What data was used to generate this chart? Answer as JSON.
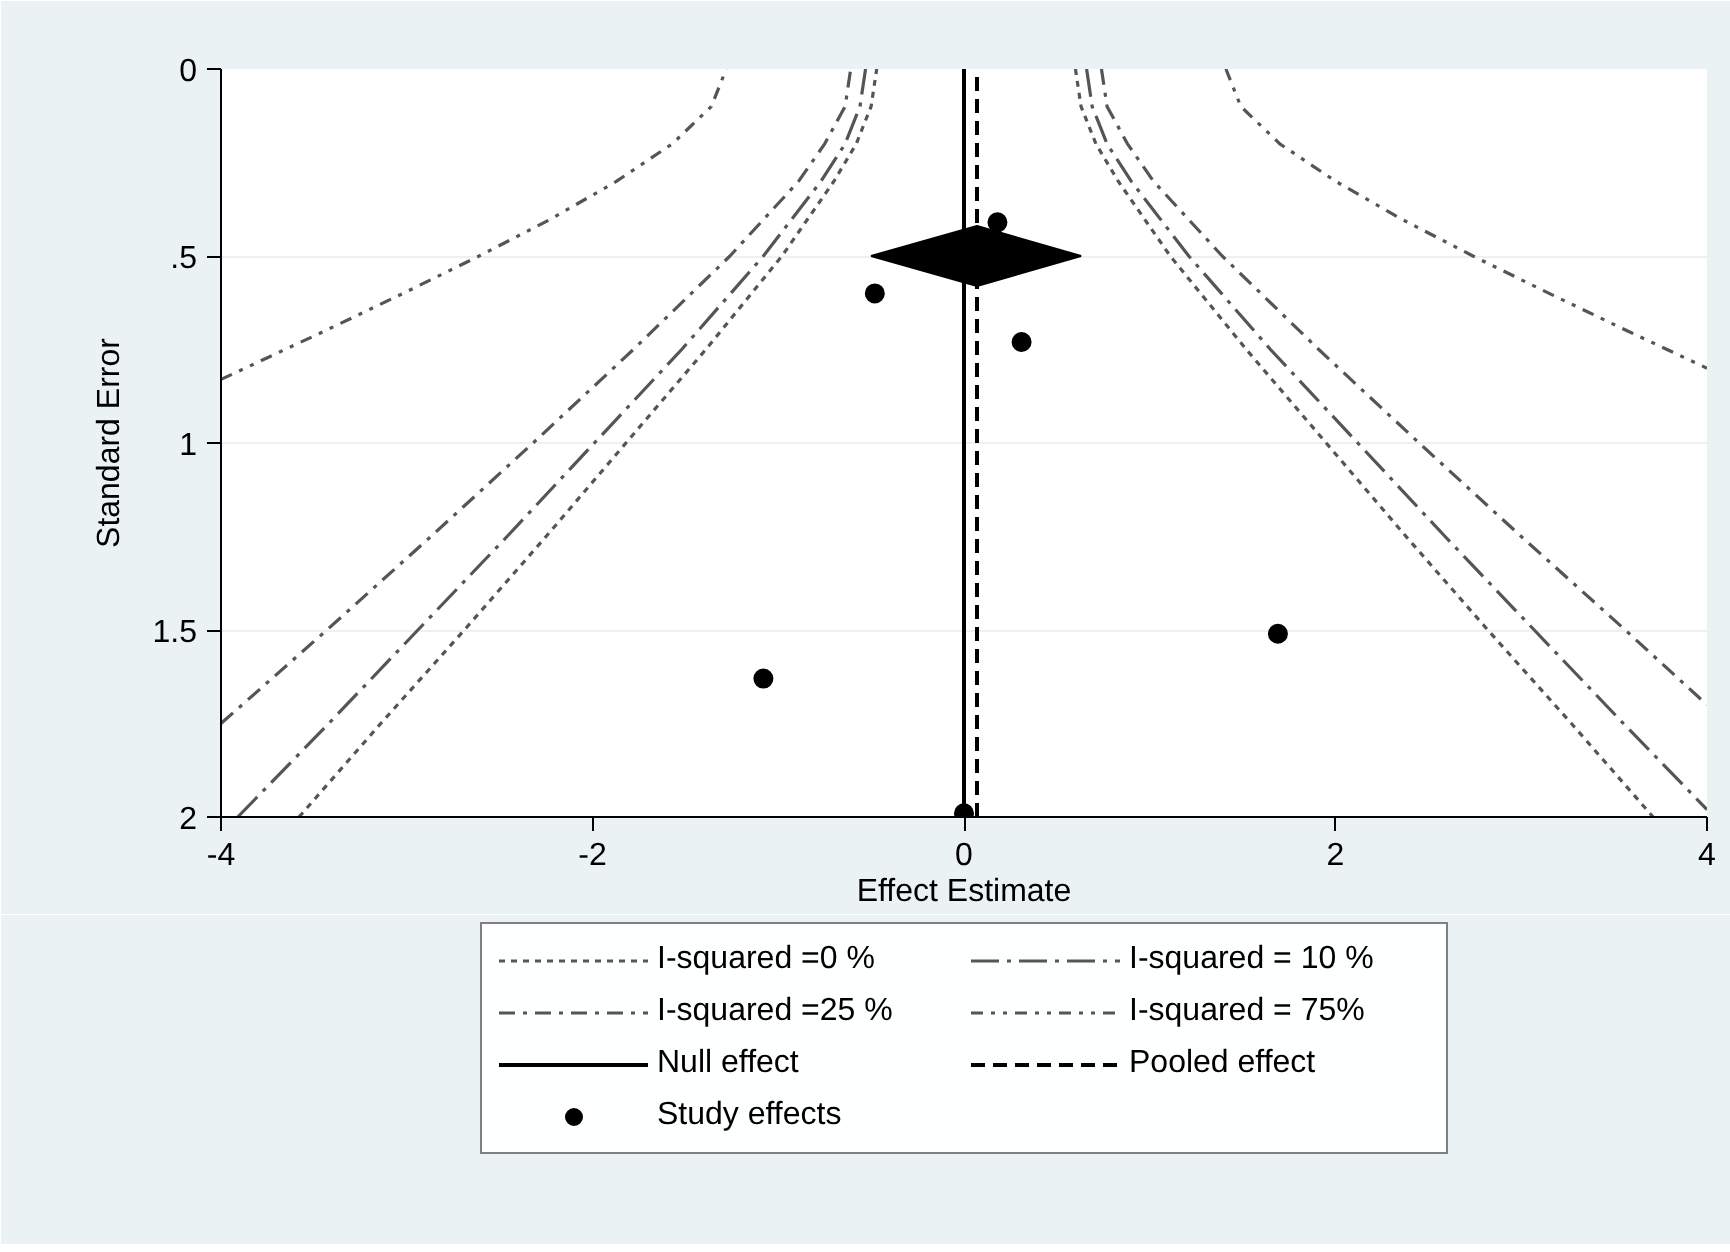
{
  "chart_data": {
    "type": "line",
    "xlabel": "Effect Estimate",
    "ylabel": "Standard Error",
    "xlim": [
      -4,
      4
    ],
    "xticks": [
      -4,
      -2,
      0,
      2,
      4
    ],
    "ylim": [
      2,
      0
    ],
    "yticks": [
      0,
      {
        "value": 0.5,
        "label": ".5"
      },
      1,
      1.5,
      2
    ],
    "grid": "y",
    "legend": "bottom",
    "series": [
      {
        "name": "I-squared =0 %",
        "color": "#555555",
        "line_style": "dotted",
        "x": [
          -3.58,
          -3.14,
          -2.69,
          -2.25,
          -1.82,
          -1.39,
          -0.98,
          -0.7,
          -0.58,
          -0.5,
          -0.47,
          null,
          0.6,
          0.63,
          0.71,
          0.83,
          1.11,
          1.52,
          1.95,
          2.38,
          2.82,
          3.27,
          3.71
        ],
        "values": [
          2,
          1.75,
          1.5,
          1.25,
          1,
          0.75,
          0.5,
          0.3,
          0.2,
          0.1,
          0,
          null,
          0,
          0.1,
          0.2,
          0.3,
          0.5,
          0.75,
          1,
          1.25,
          1.5,
          1.75,
          2
        ]
      },
      {
        "name": "I-squared = 10 %",
        "color": "#555555",
        "line_style": "longdashdot",
        "x": [
          -3.91,
          -3.42,
          -2.94,
          -2.46,
          -1.99,
          -1.52,
          -1.08,
          -0.77,
          -0.64,
          -0.56,
          -0.53,
          null,
          0.66,
          0.69,
          0.77,
          0.9,
          1.21,
          1.65,
          2.12,
          2.59,
          3.07,
          3.55,
          4
        ],
        "values": [
          2,
          1.75,
          1.5,
          1.25,
          1,
          0.75,
          0.5,
          0.3,
          0.2,
          0.1,
          0,
          null,
          0,
          0.1,
          0.2,
          0.3,
          0.5,
          0.75,
          1,
          1.25,
          1.5,
          1.75,
          1.98
        ]
      },
      {
        "name": "I-squared =25 %",
        "color": "#555555",
        "line_style": "dashdot",
        "x": [
          -4,
          -3.43,
          -2.87,
          -2.32,
          -1.78,
          -1.26,
          -0.89,
          -0.75,
          -0.64,
          -0.61,
          null,
          0.74,
          0.77,
          0.88,
          1.02,
          1.39,
          1.91,
          2.45,
          3.0,
          3.56,
          4
        ],
        "values": [
          1.75,
          1.5,
          1.25,
          1,
          0.75,
          0.5,
          0.3,
          0.2,
          0.1,
          0,
          null,
          0,
          0.1,
          0.2,
          0.3,
          0.5,
          0.75,
          1,
          1.25,
          1.5,
          1.7
        ]
      },
      {
        "name": "I-squared = 75%",
        "color": "#555555",
        "line_style": "dashdotdot",
        "x": [
          -4,
          -3.44,
          -3.02,
          -2.61,
          -2.22,
          -1.87,
          -1.57,
          -1.36,
          -1.28,
          null,
          1.41,
          1.49,
          1.7,
          2.0,
          2.35,
          2.74,
          3.15,
          3.57,
          4
        ],
        "values": [
          0.83,
          0.7,
          0.6,
          0.5,
          0.4,
          0.3,
          0.2,
          0.1,
          0,
          null,
          0,
          0.1,
          0.2,
          0.3,
          0.4,
          0.5,
          0.6,
          0.7,
          0.8
        ]
      },
      {
        "type": "area",
        "color": "#000000",
        "x": [
          -0.5,
          0.07,
          0.63,
          0.07
        ],
        "values": [
          0.5,
          0.42,
          0.5,
          0.58
        ]
      },
      {
        "name": "Study effects",
        "type": "scatter",
        "marker": "circle",
        "color": "#000000",
        "x": [
          0.18,
          -0.48,
          0.31,
          1.69,
          -1.08,
          0
        ],
        "values": [
          0.41,
          0.6,
          0.73,
          1.51,
          1.63,
          1.99
        ]
      }
    ],
    "ref_lines": [
      {
        "axis": "x",
        "value": 0,
        "label": "Null effect",
        "color": "#000000",
        "line_style": "solid"
      },
      {
        "axis": "x",
        "value": 0.07,
        "label": "Pooled effect",
        "color": "#000000",
        "line_style": "dashed"
      }
    ]
  }
}
